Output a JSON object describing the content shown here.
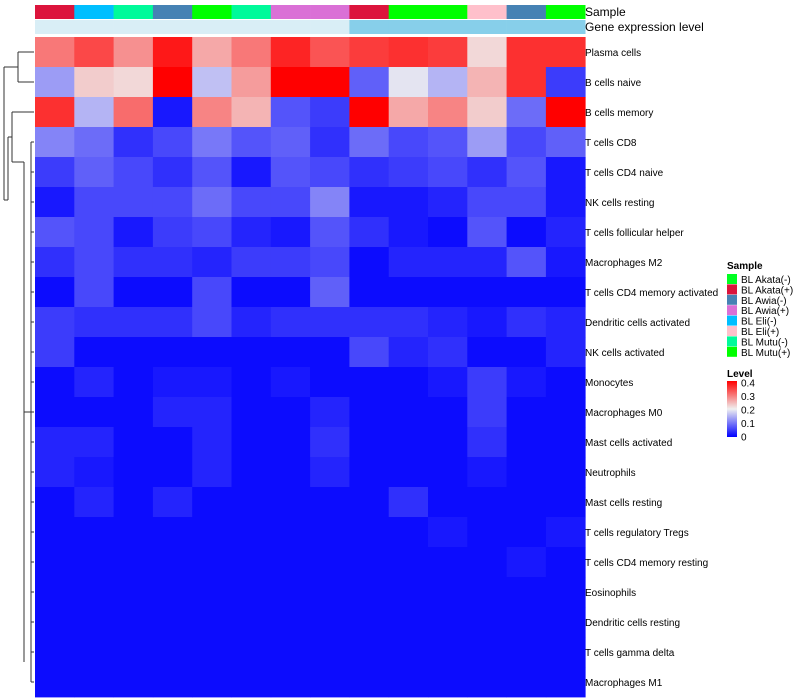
{
  "chart_data": {
    "type": "heatmap",
    "annotation_labels": [
      "Sample",
      "Gene expression level"
    ],
    "samples": [
      "BL Akata(+)",
      "BL Eli(-)",
      "BL Mutu(-)",
      "BL Awia(-)",
      "BL Mutu(+)",
      "BL Mutu(-)",
      "BL Awia(+)",
      "BL Awia(+)",
      "BL Akata(+)",
      "BL Mutu(+)",
      "BL Mutu(+)",
      "BL Eli(+)",
      "BL Awia(-)",
      "BL Mutu(+)"
    ],
    "gene_expression_colors": [
      "#d9eef6",
      "#d9eef6",
      "#d9eef6",
      "#d9eef6",
      "#d9eef6",
      "#d9eef6",
      "#d9eef6",
      "#d9eef6",
      "#87cfea",
      "#87cfea",
      "#87cfea",
      "#87cfea",
      "#87cfea",
      "#87cfea"
    ],
    "rows": [
      "Plasma cells",
      "B cells naive",
      "B cells memory",
      "T cells CD8",
      "T cells CD4 naive",
      "NK cells resting",
      "T cells follicular helper",
      "Macrophages M2",
      "T cells CD4 memory activated",
      "Dendritic cells activated",
      "NK cells activated",
      "Monocytes",
      "Macrophages M0",
      "Mast cells activated",
      "Neutrophils",
      "Mast cells resting",
      "T cells regulatory  Tregs",
      "T cells CD4 memory resting",
      "Eosinophils",
      "Dendritic cells resting",
      "T cells gamma delta",
      "Macrophages M1"
    ],
    "values": [
      [
        0.3,
        0.34,
        0.28,
        0.38,
        0.26,
        0.3,
        0.37,
        0.33,
        0.35,
        0.36,
        0.35,
        0.22,
        0.36,
        0.36
      ],
      [
        0.13,
        0.23,
        0.22,
        0.4,
        0.16,
        0.27,
        0.41,
        0.42,
        0.08,
        0.19,
        0.15,
        0.25,
        0.36,
        0.05
      ],
      [
        0.36,
        0.15,
        0.31,
        0.02,
        0.29,
        0.25,
        0.07,
        0.05,
        0.4,
        0.26,
        0.29,
        0.23,
        0.09,
        0.41
      ],
      [
        0.11,
        0.09,
        0.04,
        0.06,
        0.1,
        0.07,
        0.08,
        0.04,
        0.09,
        0.06,
        0.07,
        0.13,
        0.06,
        0.08
      ],
      [
        0.05,
        0.08,
        0.06,
        0.04,
        0.07,
        0.02,
        0.07,
        0.06,
        0.04,
        0.05,
        0.06,
        0.04,
        0.07,
        0.02
      ],
      [
        0.02,
        0.06,
        0.06,
        0.06,
        0.09,
        0.06,
        0.06,
        0.11,
        0.02,
        0.02,
        0.03,
        0.06,
        0.06,
        0.02
      ],
      [
        0.07,
        0.06,
        0.02,
        0.05,
        0.06,
        0.03,
        0.02,
        0.07,
        0.04,
        0.02,
        0.01,
        0.07,
        0.01,
        0.03
      ],
      [
        0.04,
        0.06,
        0.04,
        0.04,
        0.03,
        0.05,
        0.05,
        0.06,
        0.01,
        0.03,
        0.03,
        0.03,
        0.07,
        0.02
      ],
      [
        0.01,
        0.06,
        0.01,
        0.01,
        0.06,
        0.01,
        0.01,
        0.08,
        0.01,
        0.01,
        0.01,
        0.01,
        0.01,
        0.01
      ],
      [
        0.05,
        0.04,
        0.04,
        0.04,
        0.06,
        0.03,
        0.04,
        0.04,
        0.04,
        0.04,
        0.03,
        0.02,
        0.04,
        0.03
      ],
      [
        0.05,
        0.01,
        0.01,
        0.01,
        0.01,
        0.01,
        0.01,
        0.01,
        0.06,
        0.03,
        0.04,
        0.01,
        0.01,
        0.03
      ],
      [
        0.01,
        0.03,
        0.01,
        0.02,
        0.02,
        0.01,
        0.02,
        0.01,
        0.01,
        0.01,
        0.02,
        0.05,
        0.02,
        0.01
      ],
      [
        0.01,
        0.01,
        0.01,
        0.03,
        0.03,
        0.01,
        0.01,
        0.03,
        0.01,
        0.01,
        0.01,
        0.05,
        0.01,
        0.01
      ],
      [
        0.03,
        0.03,
        0.01,
        0.01,
        0.03,
        0.01,
        0.01,
        0.04,
        0.01,
        0.01,
        0.01,
        0.04,
        0.01,
        0.01
      ],
      [
        0.03,
        0.02,
        0.01,
        0.01,
        0.03,
        0.01,
        0.01,
        0.03,
        0.01,
        0.01,
        0.01,
        0.02,
        0.01,
        0.01
      ],
      [
        0.01,
        0.03,
        0.01,
        0.03,
        0.01,
        0.01,
        0.01,
        0.01,
        0.01,
        0.04,
        0.01,
        0.01,
        0.01,
        0.01
      ],
      [
        0.01,
        0.01,
        0.01,
        0.01,
        0.01,
        0.01,
        0.01,
        0.01,
        0.01,
        0.01,
        0.02,
        0.01,
        0.01,
        0.02
      ],
      [
        0.01,
        0.01,
        0.01,
        0.01,
        0.01,
        0.01,
        0.01,
        0.01,
        0.01,
        0.01,
        0.01,
        0.01,
        0.02,
        0.01
      ],
      [
        0.01,
        0.01,
        0.01,
        0.01,
        0.01,
        0.01,
        0.01,
        0.01,
        0.01,
        0.01,
        0.01,
        0.01,
        0.01,
        0.01
      ],
      [
        0.01,
        0.01,
        0.01,
        0.01,
        0.01,
        0.01,
        0.01,
        0.01,
        0.01,
        0.01,
        0.01,
        0.01,
        0.01,
        0.01
      ],
      [
        0.01,
        0.01,
        0.01,
        0.01,
        0.01,
        0.01,
        0.01,
        0.01,
        0.01,
        0.01,
        0.01,
        0.01,
        0.01,
        0.01
      ],
      [
        0.01,
        0.01,
        0.01,
        0.01,
        0.01,
        0.01,
        0.01,
        0.01,
        0.01,
        0.01,
        0.01,
        0.01,
        0.01,
        0.01
      ]
    ],
    "color_scale": {
      "min": 0,
      "mid": 0.2,
      "max": 0.4,
      "low_color": "#0000ff",
      "mid_color": "#f0f0f0",
      "high_color": "#ff0000"
    },
    "legend": {
      "placement": "right",
      "sample_title": "Sample",
      "sample_items": [
        {
          "label": "BL Akata(-)",
          "color": "#00ff22"
        },
        {
          "label": "BL Akata(+)",
          "color": "#dc143c"
        },
        {
          "label": "BL Awia(-)",
          "color": "#4682b4"
        },
        {
          "label": "BL Awia(+)",
          "color": "#da70d6"
        },
        {
          "label": "BL Eli(-)",
          "color": "#00bfff"
        },
        {
          "label": "BL Eli(+)",
          "color": "#ffc0cb"
        },
        {
          "label": "BL Mutu(-)",
          "color": "#00fa9a"
        },
        {
          "label": "BL Mutu(+)",
          "color": "#00ff00"
        }
      ],
      "level_title": "Level",
      "level_ticks": [
        "0.4",
        "0.3",
        "0.2",
        "0.1",
        "0"
      ]
    },
    "dendrogram": "rows"
  }
}
